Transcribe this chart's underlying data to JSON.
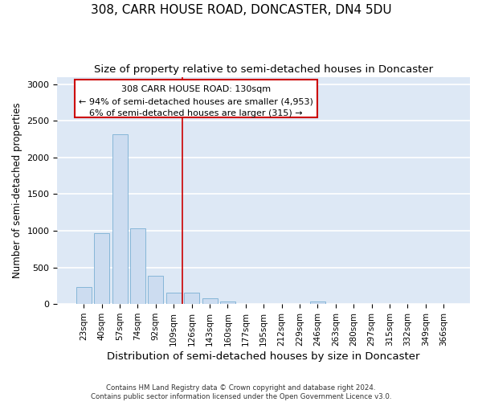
{
  "title_line1": "308, CARR HOUSE ROAD, DONCASTER, DN4 5DU",
  "title_line2": "Size of property relative to semi-detached houses in Doncaster",
  "xlabel": "Distribution of semi-detached houses by size in Doncaster",
  "ylabel": "Number of semi-detached properties",
  "categories": [
    "23sqm",
    "40sqm",
    "57sqm",
    "74sqm",
    "92sqm",
    "109sqm",
    "126sqm",
    "143sqm",
    "160sqm",
    "177sqm",
    "195sqm",
    "212sqm",
    "229sqm",
    "246sqm",
    "263sqm",
    "280sqm",
    "297sqm",
    "315sqm",
    "332sqm",
    "349sqm",
    "366sqm"
  ],
  "values": [
    230,
    970,
    2320,
    1030,
    390,
    160,
    160,
    75,
    40,
    5,
    5,
    5,
    5,
    35,
    5,
    5,
    5,
    5,
    5,
    5,
    5
  ],
  "bar_color": "#ccdcf0",
  "bar_edge_color": "#7aafd4",
  "background_color": "#dde8f5",
  "grid_color": "#ffffff",
  "vline_color": "#cc0000",
  "vline_x_index": 6,
  "annotation_text_line1": "308 CARR HOUSE ROAD: 130sqm",
  "annotation_text_line2": "← 94% of semi-detached houses are smaller (4,953)",
  "annotation_text_line3": "6% of semi-detached houses are larger (315) →",
  "annotation_box_color": "#ffffff",
  "annotation_box_edge": "#cc0000",
  "ylim": [
    0,
    3100
  ],
  "yticks": [
    0,
    500,
    1000,
    1500,
    2000,
    2500,
    3000
  ],
  "footnote": "Contains HM Land Registry data © Crown copyright and database right 2024.\nContains public sector information licensed under the Open Government Licence v3.0.",
  "fig_bg": "#ffffff"
}
